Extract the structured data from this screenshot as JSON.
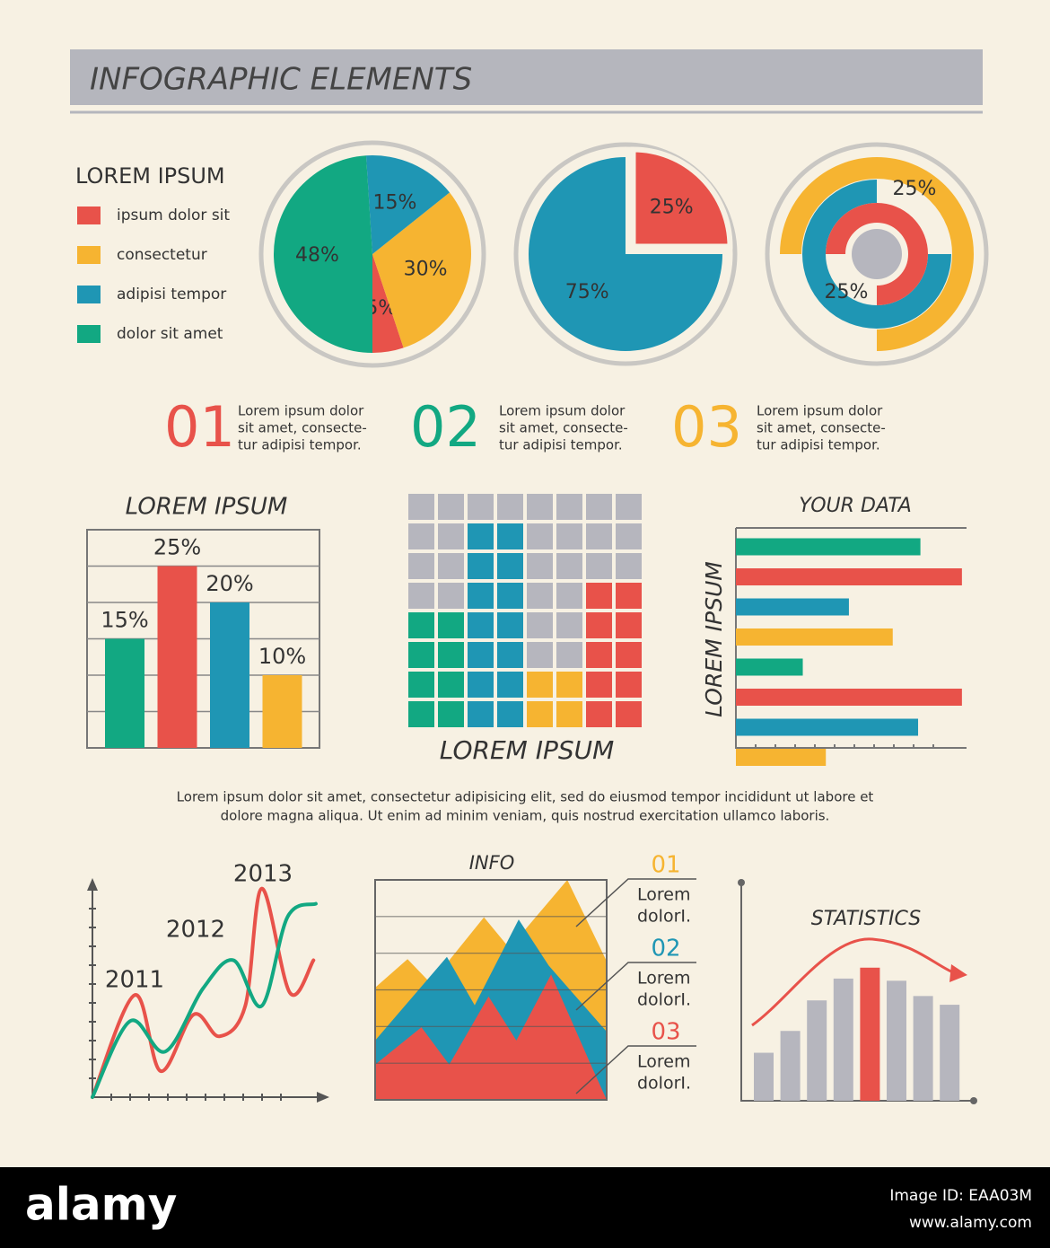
{
  "header": {
    "title": "INFOGRAPHIC ELEMENTS"
  },
  "chart_data": [
    {
      "type": "pie",
      "legend_title": "LOREM IPSUM",
      "categories": [
        "ipsum dolor sit",
        "consectetur",
        "adipisi tempor",
        "dolor sit amet"
      ],
      "colors": [
        "#e8524a",
        "#f6b431",
        "#1f96b4",
        "#12a882"
      ],
      "values": [
        5,
        30,
        15,
        48
      ],
      "value_labels": [
        "5%",
        "30%",
        "15%",
        "48%"
      ]
    },
    {
      "type": "pie",
      "colors": [
        "#e8524a",
        "#1f96b4"
      ],
      "values": [
        25,
        75
      ],
      "value_labels": [
        "25%",
        "75%"
      ],
      "explode": [
        true,
        false
      ]
    },
    {
      "type": "rings",
      "colors": [
        "#f6b431",
        "#1f96b4"
      ],
      "values": [
        25,
        25
      ],
      "value_labels": [
        "25%",
        "25%"
      ]
    },
    {
      "type": "bar",
      "title": "LOREM IPSUM",
      "values": [
        15,
        25,
        20,
        10
      ],
      "value_labels": [
        "15%",
        "25%",
        "20%",
        "10%"
      ],
      "colors": [
        "#12a882",
        "#e8524a",
        "#1f96b4",
        "#f6b431"
      ],
      "ylim": [
        0,
        30
      ]
    },
    {
      "type": "waffle",
      "title": "LOREM IPSUM",
      "series": [
        {
          "color": "#12a882",
          "values": [
            4,
            4,
            0,
            0,
            0,
            0,
            0,
            0
          ]
        },
        {
          "color": "#1f96b4",
          "values": [
            0,
            0,
            7,
            7,
            0,
            0,
            0,
            0
          ]
        },
        {
          "color": "#f6b431",
          "values": [
            0,
            0,
            0,
            0,
            2,
            2,
            0,
            0
          ]
        },
        {
          "color": "#e8524a",
          "values": [
            0,
            0,
            0,
            0,
            0,
            0,
            5,
            5
          ]
        },
        {
          "color": "#b6b6be",
          "values": [
            4,
            4,
            1,
            1,
            6,
            6,
            3,
            3
          ]
        }
      ]
    },
    {
      "type": "hbar",
      "title": "YOUR DATA",
      "y_label": "LOREM IPSUM",
      "values": [
        8,
        9.8,
        4.9,
        6.8,
        2.9,
        9.8,
        7.9,
        3.9
      ],
      "colors": [
        "#12a882",
        "#e8524a",
        "#1f96b4",
        "#f6b431",
        "#12a882",
        "#e8524a",
        "#1f96b4",
        "#f6b431"
      ],
      "xlim": [
        0,
        10
      ]
    },
    {
      "type": "line",
      "annotations": [
        "2011",
        "2012",
        "2013"
      ],
      "xlim": [
        0,
        10
      ],
      "ylim": [
        0,
        10
      ],
      "series": [
        {
          "color": "#e8524a",
          "x": [
            0,
            1.8,
            2.9,
            4.3,
            5.4,
            6.5,
            7.2,
            8.4,
            9.4
          ],
          "values": [
            0,
            4.7,
            1.2,
            3.8,
            2.8,
            4.2,
            9.6,
            4.8,
            6.3
          ]
        },
        {
          "color": "#12a882",
          "x": [
            0,
            1.6,
            3.1,
            4.7,
            6.0,
            7.2,
            8.3,
            9.5
          ],
          "values": [
            0,
            3.5,
            2.1,
            5.0,
            6.3,
            4.2,
            8.3,
            8.9
          ]
        }
      ]
    },
    {
      "type": "area",
      "title": "INFO",
      "xlim": [
        0,
        10
      ],
      "ylim": [
        0,
        10
      ],
      "series": [
        {
          "color": "#f6b431",
          "x": [
            0,
            1.4,
            2.4,
            4.7,
            5.8,
            8.3,
            10
          ],
          "values": [
            5.1,
            6.4,
            5.3,
            8.3,
            6.9,
            10,
            6.3
          ]
        },
        {
          "color": "#1f96b4",
          "x": [
            0,
            3.1,
            4.3,
            6.2,
            7.5,
            10
          ],
          "values": [
            2.7,
            6.5,
            4.3,
            8.2,
            6.1,
            3.1
          ]
        },
        {
          "color": "#e8524a",
          "x": [
            0,
            2.0,
            3.2,
            4.9,
            6.1,
            7.6,
            9.4,
            10
          ],
          "values": [
            1.6,
            3.3,
            1.6,
            4.7,
            2.7,
            5.7,
            1.4,
            0
          ]
        }
      ],
      "labels": [
        {
          "number": "01",
          "text": [
            "Lorem",
            "dolorI."
          ],
          "color": "#f6b431"
        },
        {
          "number": "02",
          "text": [
            "Lorem",
            "dolorI."
          ],
          "color": "#1f96b4"
        },
        {
          "number": "03",
          "text": [
            "Lorem",
            "dolorI."
          ],
          "color": "#e8524a"
        }
      ]
    },
    {
      "type": "bar",
      "title": "STATISTICS",
      "values": [
        2.2,
        3.2,
        4.6,
        5.6,
        6.1,
        5.5,
        4.8,
        4.4
      ],
      "colors": [
        "#b6b6be",
        "#b6b6be",
        "#b6b6be",
        "#b6b6be",
        "#e8524a",
        "#b6b6be",
        "#b6b6be",
        "#b6b6be"
      ],
      "ylim": [
        0,
        10
      ]
    }
  ],
  "steps": [
    {
      "number": "01",
      "color": "#e8524a",
      "text": [
        "Lorem ipsum dolor",
        "sit amet, consecte-",
        "tur adipisi tempor."
      ]
    },
    {
      "number": "02",
      "color": "#12a882",
      "text": [
        "Lorem ipsum dolor",
        "sit amet, consecte-",
        "tur adipisi tempor."
      ]
    },
    {
      "number": "03",
      "color": "#f6b431",
      "text": [
        "Lorem ipsum dolor",
        "sit amet, consecte-",
        "tur adipisi tempor."
      ]
    }
  ],
  "paragraph": [
    "Lorem ipsum dolor sit amet, consectetur adipisicing elit, sed do eiusmod tempor incididunt ut labore et",
    "dolore magna aliqua. Ut enim ad minim veniam, quis nostrud exercitation ullamco laboris."
  ],
  "footer": {
    "brand": "alamy",
    "image_id": "Image ID: EAA03M",
    "url": "www.alamy.com"
  }
}
